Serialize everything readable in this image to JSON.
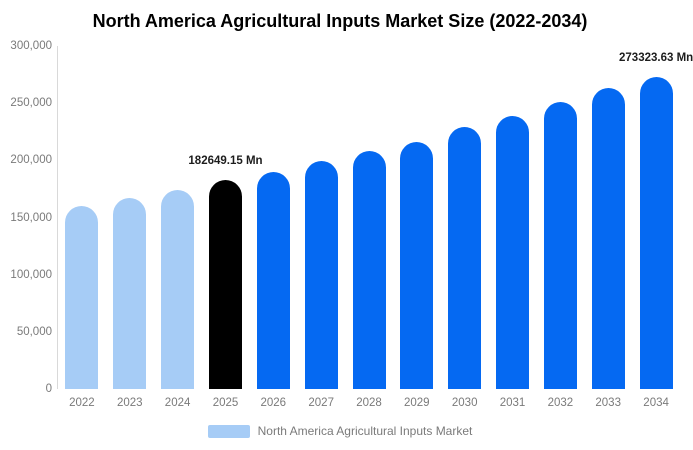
{
  "title": "North America Agricultural Inputs Market Size (2022-2034)",
  "colors": {
    "past": "#a6ccf6",
    "base": "#000000",
    "forecast": "#0569f2",
    "axis_line": "#d9d9d9",
    "tick_text": "#7a7a7a",
    "annotation_text": "#1d1d1d",
    "title_text": "#000000"
  },
  "legend": {
    "label": "North America Agricultural Inputs Market",
    "swatch_color": "#a6ccf6"
  },
  "chart_data": {
    "type": "bar",
    "title": "North America Agricultural Inputs Market Size (2022-2034)",
    "categories": [
      "2022",
      "2023",
      "2024",
      "2025",
      "2026",
      "2027",
      "2028",
      "2029",
      "2030",
      "2031",
      "2032",
      "2033",
      "2034"
    ],
    "values": [
      160000,
      166800,
      174100,
      182649.15,
      190200,
      199500,
      208600,
      216300,
      228800,
      238500,
      250700,
      263400,
      273323.63
    ],
    "bar_roles": [
      "past",
      "past",
      "past",
      "base",
      "forecast",
      "forecast",
      "forecast",
      "forecast",
      "forecast",
      "forecast",
      "forecast",
      "forecast",
      "forecast"
    ],
    "unit": "Mn",
    "xlabel": "",
    "ylabel": "",
    "ylim": [
      0,
      300000
    ],
    "yticks": [
      0,
      50000,
      100000,
      150000,
      200000,
      250000,
      300000
    ],
    "grid": false,
    "legend_position": "bottom",
    "annotations": [
      {
        "category": "2025",
        "text": "182649.15 Mn"
      },
      {
        "category": "2034",
        "text": "273323.63 Mn"
      }
    ]
  }
}
